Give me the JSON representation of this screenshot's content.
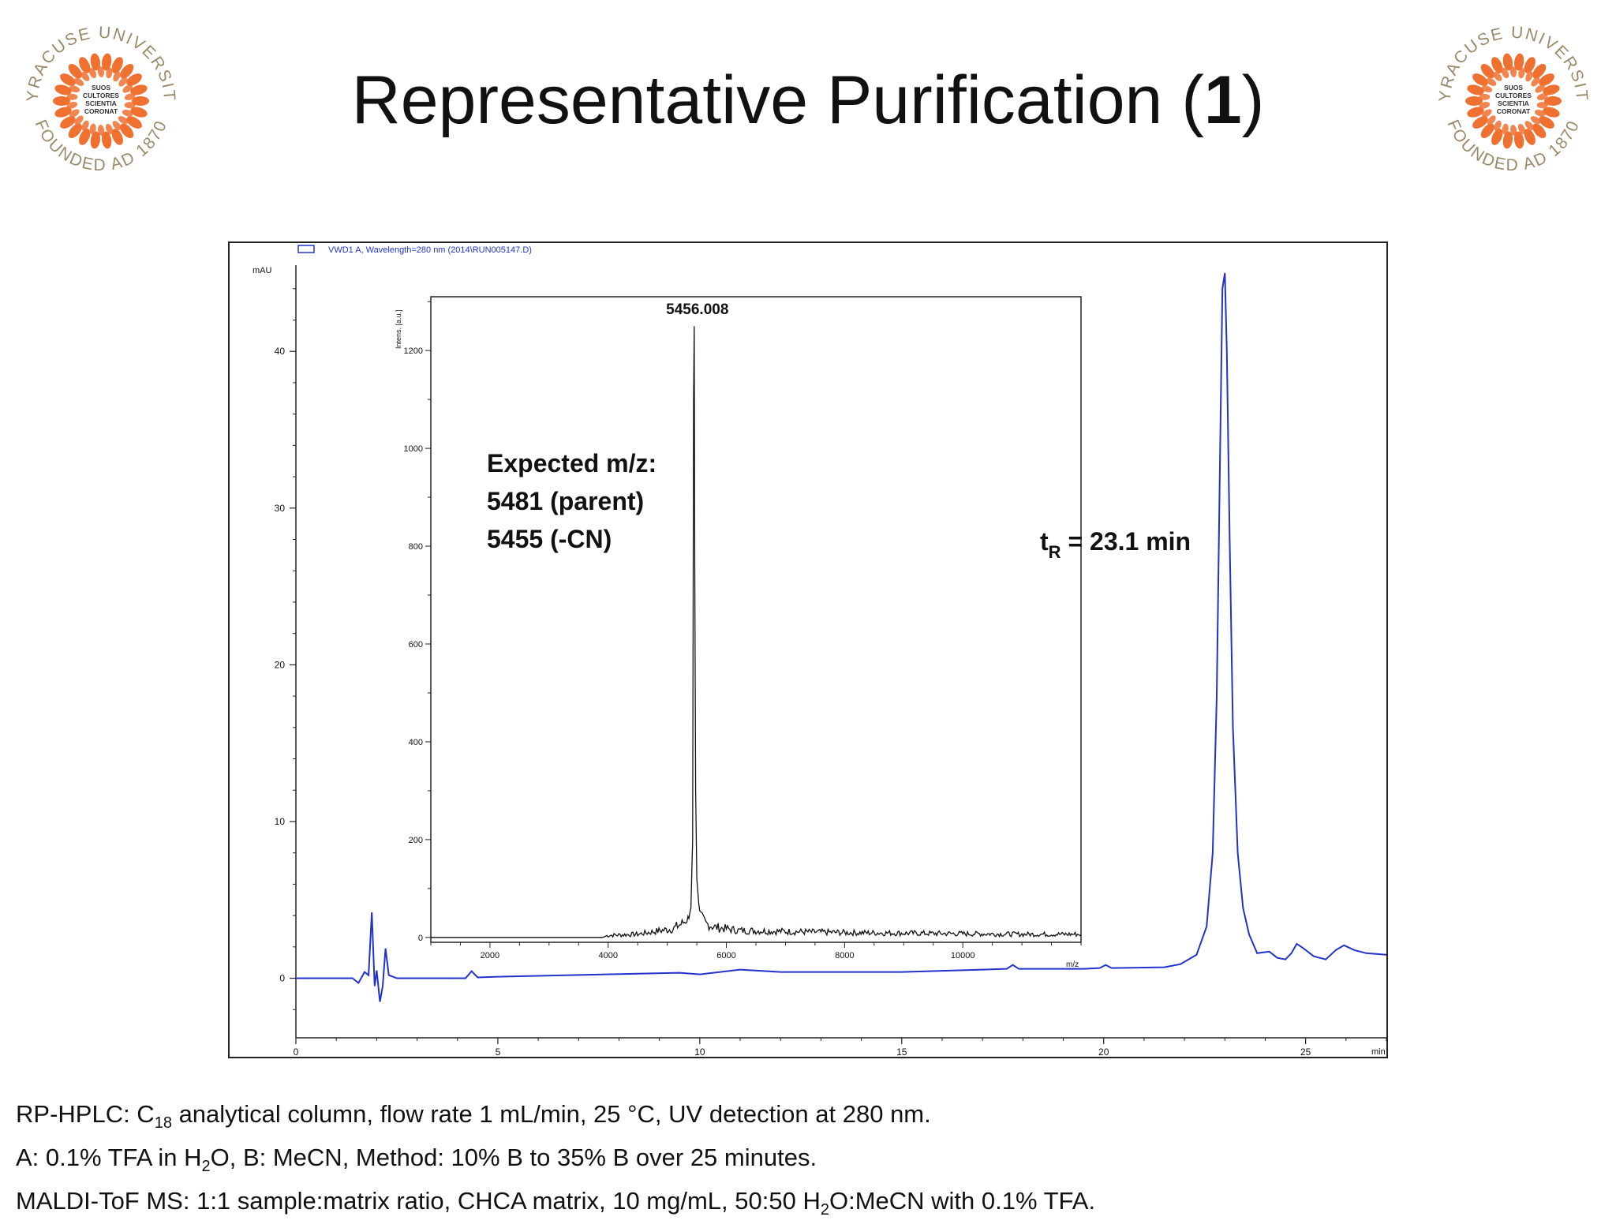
{
  "header": {
    "title_main": "Representative Purification (",
    "title_bold": "1",
    "title_end": ")"
  },
  "logo": {
    "ring_top": "SYRACUSE UNIVERSITY",
    "ring_bottom": "FOUNDED AD 1870",
    "motto": [
      "SUOS",
      "CULTORES",
      "SCIENTIA",
      "CORONAT"
    ],
    "ring_color": "#9a8a6a",
    "leaf_color": "#f07030"
  },
  "chart_data": [
    {
      "type": "line",
      "name": "hplc",
      "legend": "VWD1 A, Wavelength=280 nm (2014\\RUN005147.D)",
      "ylabel": "mAU",
      "xlabel": "min",
      "xlim": [
        0,
        27
      ],
      "ylim": [
        -3.8,
        45.5
      ],
      "x_ticks": [
        0,
        5,
        10,
        15,
        20,
        25
      ],
      "y_ticks": [
        0,
        10,
        20,
        30,
        40
      ],
      "color": "#2233cc",
      "annotation": {
        "sub_before": "t",
        "sub": "R",
        "text": " = 23.1 min"
      },
      "points": [
        [
          0,
          0
        ],
        [
          1.4,
          0
        ],
        [
          1.55,
          -0.3
        ],
        [
          1.7,
          0.4
        ],
        [
          1.8,
          0.2
        ],
        [
          1.88,
          4.2
        ],
        [
          1.95,
          -0.5
        ],
        [
          2.0,
          0.5
        ],
        [
          2.08,
          -1.5
        ],
        [
          2.15,
          -0.5
        ],
        [
          2.22,
          1.9
        ],
        [
          2.3,
          0.2
        ],
        [
          2.5,
          0
        ],
        [
          3.0,
          0
        ],
        [
          4.2,
          0
        ],
        [
          4.35,
          0.45
        ],
        [
          4.5,
          0.05
        ],
        [
          5.0,
          0.1
        ],
        [
          9.5,
          0.35
        ],
        [
          10.0,
          0.25
        ],
        [
          11.0,
          0.55
        ],
        [
          12.0,
          0.4
        ],
        [
          15.0,
          0.4
        ],
        [
          17.0,
          0.55
        ],
        [
          17.6,
          0.6
        ],
        [
          17.75,
          0.85
        ],
        [
          17.9,
          0.6
        ],
        [
          19.5,
          0.6
        ],
        [
          19.9,
          0.65
        ],
        [
          20.05,
          0.85
        ],
        [
          20.2,
          0.65
        ],
        [
          21.5,
          0.7
        ],
        [
          21.9,
          0.9
        ],
        [
          22.3,
          1.5
        ],
        [
          22.55,
          3.3
        ],
        [
          22.7,
          8.0
        ],
        [
          22.8,
          18.0
        ],
        [
          22.88,
          33.0
        ],
        [
          22.94,
          44.0
        ],
        [
          23.0,
          45.0
        ],
        [
          23.05,
          40.0
        ],
        [
          23.12,
          28.0
        ],
        [
          23.2,
          16.0
        ],
        [
          23.32,
          8.0
        ],
        [
          23.45,
          4.5
        ],
        [
          23.6,
          2.8
        ],
        [
          23.8,
          1.6
        ],
        [
          24.1,
          1.7
        ],
        [
          24.3,
          1.3
        ],
        [
          24.5,
          1.2
        ],
        [
          24.65,
          1.6
        ],
        [
          24.78,
          2.2
        ],
        [
          24.95,
          1.9
        ],
        [
          25.2,
          1.4
        ],
        [
          25.5,
          1.2
        ],
        [
          25.75,
          1.8
        ],
        [
          25.95,
          2.1
        ],
        [
          26.2,
          1.8
        ],
        [
          26.5,
          1.6
        ],
        [
          27.0,
          1.5
        ]
      ]
    },
    {
      "type": "line",
      "name": "maldi",
      "ylabel": "Intens. [a.u.]",
      "xlabel": "m/z",
      "xlim": [
        1000,
        12000
      ],
      "ylim": [
        -10,
        1310
      ],
      "x_ticks": [
        2000,
        4000,
        6000,
        8000,
        10000
      ],
      "y_ticks": [
        0,
        200,
        400,
        600,
        800,
        1000,
        1200
      ],
      "color": "#111111",
      "peak_label": "5456.008",
      "annotation_lines": [
        "Expected m/z:",
        "5481 (parent)",
        "5455 (-CN)"
      ],
      "points": [
        [
          1000,
          0
        ],
        [
          3900,
          0
        ],
        [
          4000,
          3
        ],
        [
          4500,
          5
        ],
        [
          4900,
          12
        ],
        [
          5100,
          15
        ],
        [
          5250,
          25
        ],
        [
          5350,
          35
        ],
        [
          5400,
          60
        ],
        [
          5430,
          200
        ],
        [
          5445,
          1100
        ],
        [
          5456,
          1250
        ],
        [
          5465,
          750
        ],
        [
          5480,
          300
        ],
        [
          5500,
          120
        ],
        [
          5550,
          45
        ],
        [
          5650,
          25
        ],
        [
          5800,
          18
        ],
        [
          6200,
          12
        ],
        [
          7000,
          10
        ],
        [
          8000,
          8
        ],
        [
          9000,
          7
        ],
        [
          10000,
          6
        ],
        [
          11000,
          5
        ],
        [
          12000,
          5
        ]
      ]
    }
  ],
  "footer": {
    "line1_a": "RP-HPLC: C",
    "line1_sub": "18",
    "line1_b": " analytical column, flow rate 1 mL/min, 25 °C, UV detection at 280 nm.",
    "line2_a": "A: 0.1% TFA in H",
    "line2_sub": "2",
    "line2_b": "O, B: MeCN, Method: 10% B to 35% B over 25 minutes.",
    "line3_a": "MALDI-ToF MS: 1:1 sample:matrix ratio, CHCA matrix, 10 mg/mL, 50:50 H",
    "line3_sub": "2",
    "line3_b": "O:MeCN with 0.1% TFA."
  }
}
